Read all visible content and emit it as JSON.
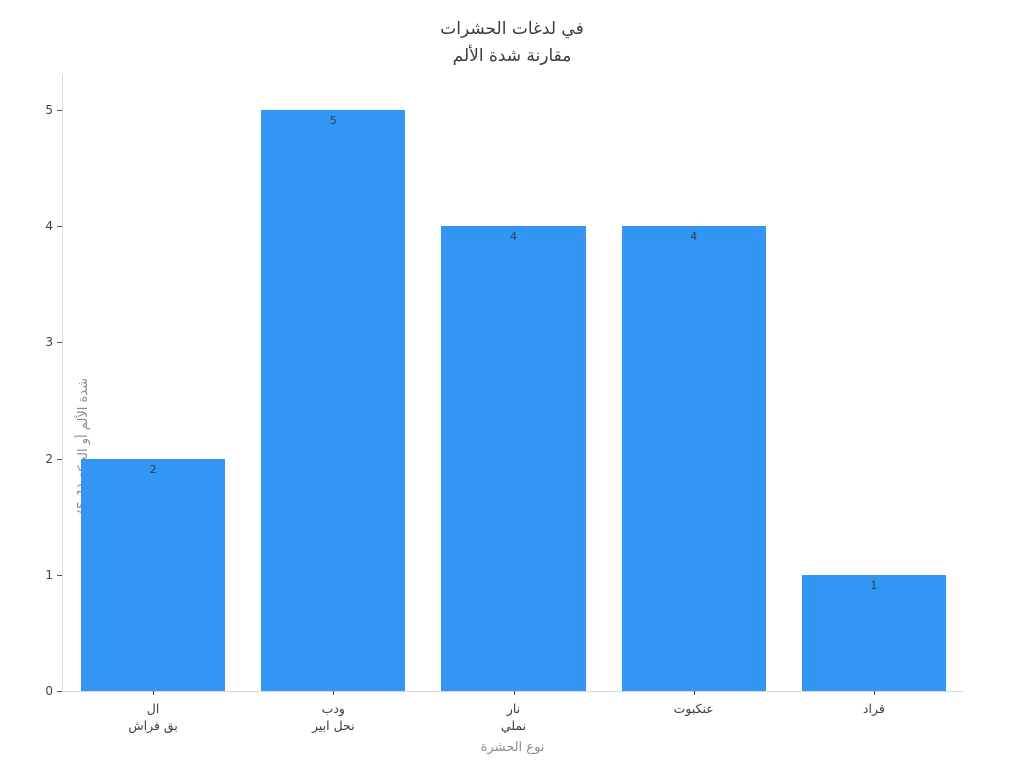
{
  "title": {
    "line1": "في لدغات الحشرات",
    "line2": "مقارنة شدة الألم"
  },
  "chart_data": {
    "type": "bar",
    "title": "في لدغات الحشرات\nمقارنة شدة الألم",
    "categories": [
      "ال\nبق فراش",
      "ودب\nنحل ابير",
      "نار\nنملي",
      "عنكبوت",
      "قراد"
    ],
    "values": [
      2,
      5,
      4,
      4,
      1
    ],
    "bar_labels": [
      "2",
      "5",
      "4",
      "4",
      "1"
    ],
    "xlabel": "نوع الحشرة",
    "ylabel": "شدة الألم أو الحكة (1-5)",
    "ylim": [
      0,
      5.3
    ],
    "yticks": [
      0,
      1,
      2,
      3,
      4,
      5
    ],
    "grid": false,
    "legend": false,
    "bar_color": "#3396f5",
    "bar_width_fraction": 0.8
  },
  "colors": {
    "background": "#ffffff",
    "title_text": "#3b3b3b",
    "tick_text": "#444444",
    "axis_title_text": "#8c8c8c",
    "spine": "#d9d9d9",
    "tick_mark": "#555555",
    "bar_value_text": "#2f4050"
  }
}
